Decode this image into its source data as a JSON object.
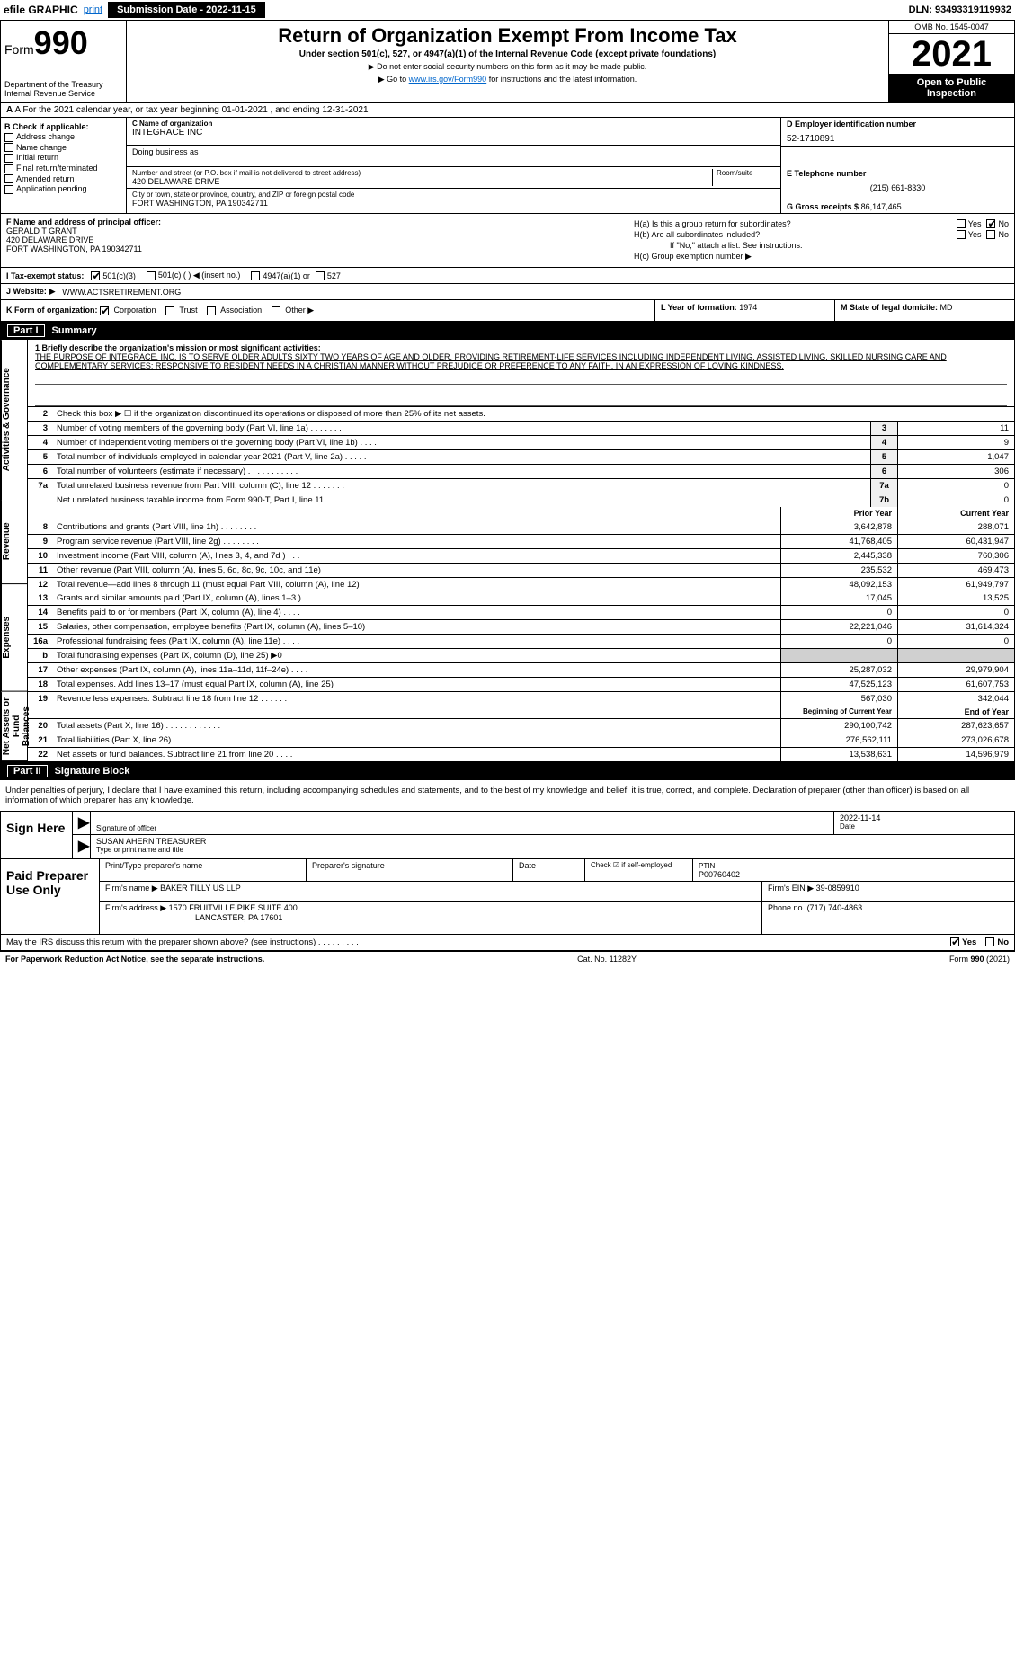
{
  "topbar": {
    "efile": "efile GRAPHIC",
    "print": "print",
    "submission_label": "Submission Date - 2022-11-15",
    "dln": "DLN: 93493319119932"
  },
  "header": {
    "form_prefix": "Form",
    "form_number": "990",
    "dept": "Department of the Treasury\nInternal Revenue Service",
    "title": "Return of Organization Exempt From Income Tax",
    "subtitle": "Under section 501(c), 527, or 4947(a)(1) of the Internal Revenue Code (except private foundations)",
    "note1": "▶ Do not enter social security numbers on this form as it may be made public.",
    "note2_pre": "▶ Go to ",
    "note2_link": "www.irs.gov/Form990",
    "note2_post": " for instructions and the latest information.",
    "omb": "OMB No. 1545-0047",
    "year": "2021",
    "open": "Open to Public Inspection"
  },
  "row_a": "A For the 2021 calendar year, or tax year beginning 01-01-2021    , and ending 12-31-2021",
  "col_b": {
    "label": "B Check if applicable:",
    "items": [
      "Address change",
      "Name change",
      "Initial return",
      "Final return/terminated",
      "Amended return",
      "Application pending"
    ]
  },
  "col_c": {
    "name_label": "C Name of organization",
    "name": "INTEGRACE INC",
    "dba_label": "Doing business as",
    "dba": "",
    "street_label": "Number and street (or P.O. box if mail is not delivered to street address)",
    "room_label": "Room/suite",
    "street": "420 DELAWARE DRIVE",
    "city_label": "City or town, state or province, country, and ZIP or foreign postal code",
    "city": "FORT WASHINGTON, PA  190342711"
  },
  "col_d": {
    "label": "D Employer identification number",
    "value": "52-1710891"
  },
  "col_e": {
    "tel_label": "E Telephone number",
    "tel": "(215) 661-8330",
    "gross_label": "G Gross receipts $",
    "gross": "86,147,465"
  },
  "col_f": {
    "label": "F  Name and address of principal officer:",
    "name": "GERALD T GRANT",
    "addr1": "420 DELAWARE DRIVE",
    "addr2": "FORT WASHINGTON, PA  190342711"
  },
  "col_h": {
    "a": "H(a)  Is this a group return for subordinates?",
    "b": "H(b)  Are all subordinates included?",
    "note": "If \"No,\" attach a list. See instructions.",
    "c": "H(c)  Group exemption number ▶",
    "yes": "Yes",
    "no": "No"
  },
  "row_i": {
    "label": "I  Tax-exempt status:",
    "o1": "501(c)(3)",
    "o2": "501(c) (  ) ◀ (insert no.)",
    "o3": "4947(a)(1) or",
    "o4": "527"
  },
  "row_j": {
    "label": "J  Website: ▶",
    "value": "WWW.ACTSRETIREMENT.ORG"
  },
  "row_k": {
    "label": "K Form of organization:",
    "o1": "Corporation",
    "o2": "Trust",
    "o3": "Association",
    "o4": "Other ▶"
  },
  "row_l": {
    "label": "L Year of formation:",
    "value": "1974"
  },
  "row_m": {
    "label": "M State of legal domicile:",
    "value": "MD"
  },
  "part1": {
    "title": "Part I",
    "name": "Summary",
    "vtabs": [
      "Activities & Governance",
      "Revenue",
      "Expenses",
      "Net Assets or Fund Balances"
    ],
    "line1_label": "1  Briefly describe the organization's mission or most significant activities:",
    "mission": "THE PURPOSE OF INTEGRACE, INC. IS TO SERVE OLDER ADULTS SIXTY TWO YEARS OF AGE AND OLDER, PROVIDING RETIREMENT-LIFE SERVICES INCLUDING INDEPENDENT LIVING, ASSISTED LIVING, SKILLED NURSING CARE AND COMPLEMENTARY SERVICES; RESPONSIVE TO RESIDENT NEEDS IN A CHRISTIAN MANNER WITHOUT PREJUDICE OR PREFERENCE TO ANY FAITH, IN AN EXPRESSION OF LOVING KINDNESS.",
    "line2": "Check this box ▶ ☐ if the organization discontinued its operations or disposed of more than 25% of its net assets.",
    "gov_lines": [
      {
        "n": "3",
        "d": "Number of voting members of the governing body (Part VI, line 1a)  .    .    .    .    .    .    .",
        "b": "3",
        "v": "11"
      },
      {
        "n": "4",
        "d": "Number of independent voting members of the governing body (Part VI, line 1b)  .    .    .    .",
        "b": "4",
        "v": "9"
      },
      {
        "n": "5",
        "d": "Total number of individuals employed in calendar year 2021 (Part V, line 2a)  .    .    .    .    .",
        "b": "5",
        "v": "1,047"
      },
      {
        "n": "6",
        "d": "Total number of volunteers (estimate if necessary)  .    .    .    .    .    .    .    .    .    .    .",
        "b": "6",
        "v": "306"
      },
      {
        "n": "7a",
        "d": "Total unrelated business revenue from Part VIII, column (C), line 12  .    .    .    .    .    .    .",
        "b": "7a",
        "v": "0"
      },
      {
        "n": "",
        "d": "Net unrelated business taxable income from Form 990-T, Part I, line 11  .    .    .    .    .    .",
        "b": "7b",
        "v": "0"
      }
    ],
    "col_prior": "Prior Year",
    "col_current": "Current Year",
    "rev_lines": [
      {
        "n": "8",
        "d": "Contributions and grants (Part VIII, line 1h)  .    .    .    .    .    .    .    .",
        "p": "3,642,878",
        "c": "288,071"
      },
      {
        "n": "9",
        "d": "Program service revenue (Part VIII, line 2g)  .    .    .    .    .    .    .    .",
        "p": "41,768,405",
        "c": "60,431,947"
      },
      {
        "n": "10",
        "d": "Investment income (Part VIII, column (A), lines 3, 4, and 7d )  .    .    .",
        "p": "2,445,338",
        "c": "760,306"
      },
      {
        "n": "11",
        "d": "Other revenue (Part VIII, column (A), lines 5, 6d, 8c, 9c, 10c, and 11e)",
        "p": "235,532",
        "c": "469,473"
      },
      {
        "n": "12",
        "d": "Total revenue—add lines 8 through 11 (must equal Part VIII, column (A), line 12)",
        "p": "48,092,153",
        "c": "61,949,797"
      }
    ],
    "exp_lines": [
      {
        "n": "13",
        "d": "Grants and similar amounts paid (Part IX, column (A), lines 1–3 )  .    .    .",
        "p": "17,045",
        "c": "13,525"
      },
      {
        "n": "14",
        "d": "Benefits paid to or for members (Part IX, column (A), line 4)  .    .    .    .",
        "p": "0",
        "c": "0"
      },
      {
        "n": "15",
        "d": "Salaries, other compensation, employee benefits (Part IX, column (A), lines 5–10)",
        "p": "22,221,046",
        "c": "31,614,324"
      },
      {
        "n": "16a",
        "d": "Professional fundraising fees (Part IX, column (A), line 11e)  .    .    .    .",
        "p": "0",
        "c": "0"
      },
      {
        "n": "b",
        "d": "Total fundraising expenses (Part IX, column (D), line 25) ▶0",
        "p": "",
        "c": "",
        "shaded": true
      },
      {
        "n": "17",
        "d": "Other expenses (Part IX, column (A), lines 11a–11d, 11f–24e)  .    .    .    .",
        "p": "25,287,032",
        "c": "29,979,904"
      },
      {
        "n": "18",
        "d": "Total expenses. Add lines 13–17 (must equal Part IX, column (A), line 25)",
        "p": "47,525,123",
        "c": "61,607,753"
      },
      {
        "n": "19",
        "d": "Revenue less expenses. Subtract line 18 from line 12  .    .    .    .    .    .",
        "p": "567,030",
        "c": "342,044"
      }
    ],
    "col_begin": "Beginning of Current Year",
    "col_end": "End of Year",
    "net_lines": [
      {
        "n": "20",
        "d": "Total assets (Part X, line 16)  .    .    .    .    .    .    .    .    .    .    .    .",
        "p": "290,100,742",
        "c": "287,623,657"
      },
      {
        "n": "21",
        "d": "Total liabilities (Part X, line 26)  .    .    .    .    .    .    .    .    .    .    .",
        "p": "276,562,111",
        "c": "273,026,678"
      },
      {
        "n": "22",
        "d": "Net assets or fund balances. Subtract line 21 from line 20  .    .    .    .",
        "p": "13,538,631",
        "c": "14,596,979"
      }
    ]
  },
  "part2": {
    "title": "Part II",
    "name": "Signature Block",
    "intro": "Under penalties of perjury, I declare that I have examined this return, including accompanying schedules and statements, and to the best of my knowledge and belief, it is true, correct, and complete. Declaration of preparer (other than officer) is based on all information of which preparer has any knowledge.",
    "sign_here": "Sign Here",
    "sig_officer": "Signature of officer",
    "date_lbl": "Date",
    "date": "2022-11-14",
    "name_title": "SUSAN AHERN  TREASURER",
    "type_lbl": "Type or print name and title",
    "paid": "Paid Preparer Use Only",
    "p_name_lbl": "Print/Type preparer's name",
    "p_sig_lbl": "Preparer's signature",
    "p_date_lbl": "Date",
    "p_check": "Check ☑ if self-employed",
    "ptin_lbl": "PTIN",
    "ptin": "P00760402",
    "firm_name_lbl": "Firm's name    ▶",
    "firm_name": "BAKER TILLY US LLP",
    "firm_ein_lbl": "Firm's EIN ▶",
    "firm_ein": "39-0859910",
    "firm_addr_lbl": "Firm's address ▶",
    "firm_addr1": "1570 FRUITVILLE PIKE SUITE 400",
    "firm_addr2": "LANCASTER, PA  17601",
    "phone_lbl": "Phone no.",
    "phone": "(717) 740-4863",
    "may": "May the IRS discuss this return with the preparer shown above? (see instructions)  .    .    .    .    .    .    .    .    .",
    "yes": "Yes",
    "no": "No"
  },
  "footer": {
    "left": "For Paperwork Reduction Act Notice, see the separate instructions.",
    "mid": "Cat. No. 11282Y",
    "right": "Form 990 (2021)"
  }
}
